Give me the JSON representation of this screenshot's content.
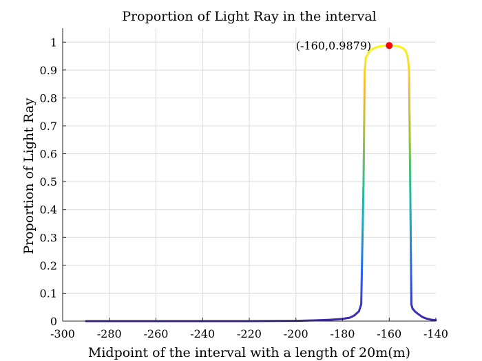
{
  "chart_data": {
    "type": "line",
    "title": "Proportion of Light Ray in the interval",
    "xlabel": "Midpoint of the interval with a length of 20m(m)",
    "ylabel": "Proportion of Light Ray",
    "xlim": [
      -300,
      -140
    ],
    "ylim": [
      0,
      1.05
    ],
    "xticks": [
      -300,
      -280,
      -260,
      -240,
      -220,
      -200,
      -180,
      -160,
      -140
    ],
    "yticks": [
      0,
      0.1,
      0.2,
      0.3,
      0.4,
      0.5,
      0.6,
      0.7,
      0.8,
      0.9,
      1
    ],
    "grid": true,
    "colormap": [
      "#3e26a8",
      "#2f5ff0",
      "#10a4d8",
      "#2ebf8d",
      "#a6c232",
      "#f5b944",
      "#f9fb15"
    ],
    "series": [
      {
        "x": [
          -290,
          -280,
          -260,
          -240,
          -220,
          -200,
          -190,
          -185,
          -180,
          -177,
          -175,
          -173,
          -172,
          -171,
          -170.5,
          -170,
          -169,
          -168,
          -166,
          -164,
          -162,
          -160,
          -158,
          -156,
          -154,
          -153,
          -152,
          -151.5,
          -151,
          -150.5,
          -150,
          -149,
          -148,
          -147,
          -146,
          -145,
          -144,
          -142,
          -140
        ],
        "y": [
          0.0,
          0.0,
          0.0,
          0.0,
          0.0,
          0.001,
          0.003,
          0.005,
          0.008,
          0.012,
          0.02,
          0.035,
          0.06,
          0.5,
          0.9,
          0.945,
          0.96,
          0.972,
          0.98,
          0.985,
          0.987,
          0.9879,
          0.987,
          0.985,
          0.978,
          0.97,
          0.945,
          0.9,
          0.5,
          0.06,
          0.045,
          0.035,
          0.028,
          0.022,
          0.016,
          0.012,
          0.009,
          0.005,
          0.003
        ]
      }
    ],
    "highlight": {
      "x": -160,
      "y": 0.9879,
      "label": "(-160,0.9879)",
      "color": "#ff0000"
    }
  }
}
